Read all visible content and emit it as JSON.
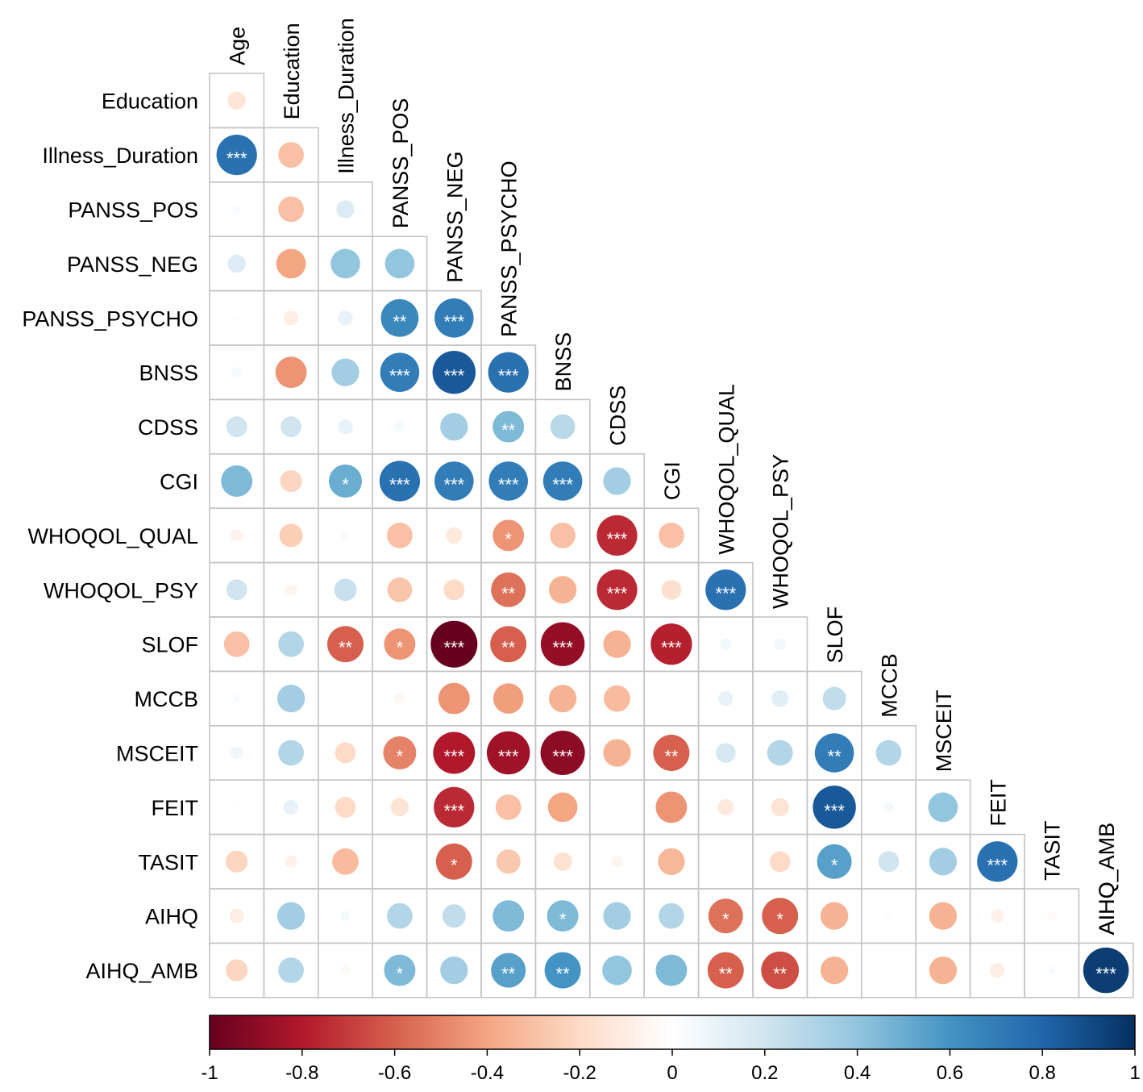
{
  "chart_data": {
    "type": "heatmap",
    "variables": [
      "Age",
      "Education",
      "Illness_Duration",
      "PANSS_POS",
      "PANSS_NEG",
      "PANSS_PSYCHO",
      "BNSS",
      "CDSS",
      "CGI",
      "WHOQOL_QUAL",
      "WHOQOL_PSY",
      "SLOF",
      "MCCB",
      "MSCEIT",
      "FEIT",
      "TASIT",
      "AIHQ",
      "AIHQ_AMB"
    ],
    "row_labels": [
      "Education",
      "Illness_Duration",
      "PANSS_POS",
      "PANSS_NEG",
      "PANSS_PSYCHO",
      "BNSS",
      "CDSS",
      "CGI",
      "WHOQOL_QUAL",
      "WHOQOL_PSY",
      "SLOF",
      "MCCB",
      "MSCEIT",
      "FEIT",
      "TASIT",
      "AIHQ",
      "AIHQ_AMB"
    ],
    "column_labels": [
      "Age",
      "Education",
      "Illness_Duration",
      "PANSS_POS",
      "PANSS_NEG",
      "PANSS_PSYCHO",
      "BNSS",
      "CDSS",
      "CGI",
      "WHOQOL_QUAL",
      "WHOQOL_PSY",
      "SLOF",
      "MCCB",
      "MSCEIT",
      "FEIT",
      "TASIT",
      "AIHQ"
    ],
    "correlations": [
      [
        -0.15
      ],
      [
        0.75,
        -0.3
      ],
      [
        0.03,
        -0.3,
        0.15
      ],
      [
        0.15,
        -0.4,
        0.4,
        0.4
      ],
      [
        -0.02,
        -0.1,
        0.1,
        0.65,
        0.7
      ],
      [
        0.05,
        -0.45,
        0.35,
        0.7,
        0.85,
        0.75
      ],
      [
        0.2,
        0.2,
        0.1,
        0.05,
        0.35,
        0.45,
        0.28
      ],
      [
        0.45,
        -0.22,
        0.5,
        0.75,
        0.7,
        0.7,
        0.7,
        0.35
      ],
      [
        -0.07,
        -0.25,
        0.03,
        -0.3,
        -0.12,
        -0.45,
        -0.3,
        -0.75,
        -0.3
      ],
      [
        0.2,
        -0.06,
        0.23,
        -0.28,
        -0.2,
        -0.55,
        -0.35,
        -0.75,
        -0.18,
        0.75
      ],
      [
        -0.3,
        0.3,
        -0.6,
        -0.45,
        -1.0,
        -0.6,
        -0.88,
        -0.35,
        -0.78,
        0.06,
        0.06
      ],
      [
        0.03,
        0.35,
        0.0,
        -0.05,
        -0.45,
        -0.42,
        -0.35,
        -0.32,
        0.0,
        0.1,
        0.13,
        0.25
      ],
      [
        0.07,
        0.3,
        -0.2,
        -0.5,
        -0.8,
        -0.85,
        -0.9,
        -0.35,
        -0.6,
        0.18,
        0.3,
        0.7,
        0.3
      ],
      [
        -0.01,
        0.1,
        -0.2,
        -0.15,
        -0.75,
        -0.3,
        -0.4,
        0.0,
        -0.45,
        -0.12,
        -0.15,
        0.85,
        0.05,
        0.4
      ],
      [
        -0.22,
        -0.07,
        -0.32,
        0.0,
        -0.6,
        -0.27,
        -0.16,
        -0.06,
        -0.33,
        0.0,
        -0.2,
        0.55,
        0.2,
        0.35,
        0.75
      ],
      [
        -0.1,
        0.35,
        0.05,
        0.3,
        0.25,
        0.45,
        0.45,
        0.35,
        0.3,
        -0.55,
        -0.6,
        -0.35,
        0.02,
        -0.35,
        -0.08,
        -0.04
      ],
      [
        -0.22,
        0.3,
        -0.04,
        0.45,
        0.35,
        0.55,
        0.6,
        0.4,
        0.45,
        -0.6,
        -0.65,
        -0.35,
        0.0,
        -0.35,
        -0.1,
        0.03,
        0.95
      ]
    ],
    "significance": [
      [
        ""
      ],
      [
        "***",
        ""
      ],
      [
        "",
        "",
        ""
      ],
      [
        "",
        "",
        "",
        ""
      ],
      [
        "",
        "",
        "",
        "**",
        "***"
      ],
      [
        "",
        "",
        "",
        "***",
        "***",
        "***"
      ],
      [
        "",
        "",
        "",
        "",
        "",
        "**",
        ""
      ],
      [
        "",
        "",
        "*",
        "***",
        "***",
        "***",
        "***",
        ""
      ],
      [
        "",
        "",
        "",
        "",
        "",
        "*",
        "",
        "***",
        ""
      ],
      [
        "",
        "",
        "",
        "",
        "",
        "**",
        "",
        "***",
        "",
        "***"
      ],
      [
        "",
        "",
        "**",
        "*",
        "***",
        "**",
        "***",
        "",
        "***",
        "",
        ""
      ],
      [
        "",
        "",
        "",
        "",
        "",
        "",
        "",
        "",
        "",
        "",
        "",
        ""
      ],
      [
        "",
        "",
        "",
        "*",
        "***",
        "***",
        "***",
        "",
        "**",
        "",
        "",
        "**",
        ""
      ],
      [
        "",
        "",
        "",
        "",
        "***",
        "",
        "",
        "",
        "",
        "",
        "",
        "***",
        "",
        ""
      ],
      [
        "",
        "",
        "",
        "",
        "*",
        "",
        "",
        "",
        "",
        "",
        "",
        "*",
        "",
        "",
        "***"
      ],
      [
        "",
        "",
        "",
        "",
        "",
        "",
        "*",
        "",
        "",
        "*",
        "*",
        "",
        "",
        "",
        "",
        ""
      ],
      [
        "",
        "",
        "",
        "*",
        "",
        "**",
        "**",
        "",
        "",
        "**",
        "**",
        "",
        "",
        "",
        "",
        "",
        "***"
      ]
    ],
    "colorbar": {
      "range": [
        -1,
        1
      ],
      "ticks": [
        "-1",
        "-0.8",
        "-0.6",
        "-0.4",
        "-0.2",
        "0",
        "0.2",
        "0.4",
        "0.6",
        "0.8",
        "1"
      ],
      "colors": [
        "#67001F",
        "#B2182B",
        "#D6604D",
        "#F4A582",
        "#FDDBC7",
        "#FFFFFF",
        "#D1E5F0",
        "#92C5DE",
        "#4393C3",
        "#2166AC",
        "#053061"
      ]
    },
    "title": "",
    "xlabel": "",
    "ylabel": ""
  }
}
